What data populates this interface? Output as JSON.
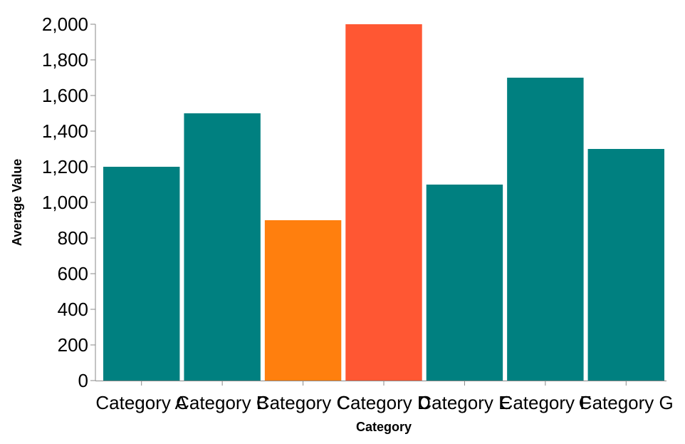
{
  "chart_data": {
    "type": "bar",
    "categories": [
      "Category A",
      "Category B",
      "Category C",
      "Category D",
      "Category E",
      "Category F",
      "Category G"
    ],
    "values": [
      1200,
      1500,
      900,
      2000,
      1100,
      1700,
      1300
    ],
    "bar_colors": [
      "#008080",
      "#008080",
      "#ff7f0e",
      "#ff5733",
      "#008080",
      "#008080",
      "#008080"
    ],
    "xlabel": "Category",
    "ylabel": "Average Value",
    "ylim": [
      0,
      2000
    ],
    "yticks": [
      0,
      200,
      400,
      600,
      800,
      1000,
      1200,
      1400,
      1600,
      1800,
      2000
    ],
    "ytick_labels": [
      "0",
      "200",
      "400",
      "600",
      "800",
      "1,000",
      "1,200",
      "1,400",
      "1,600",
      "1,800",
      "2,000"
    ],
    "grid": false,
    "legend": "none"
  },
  "colors": {
    "axis": "#888888",
    "text": "#000000",
    "background": "#ffffff"
  }
}
